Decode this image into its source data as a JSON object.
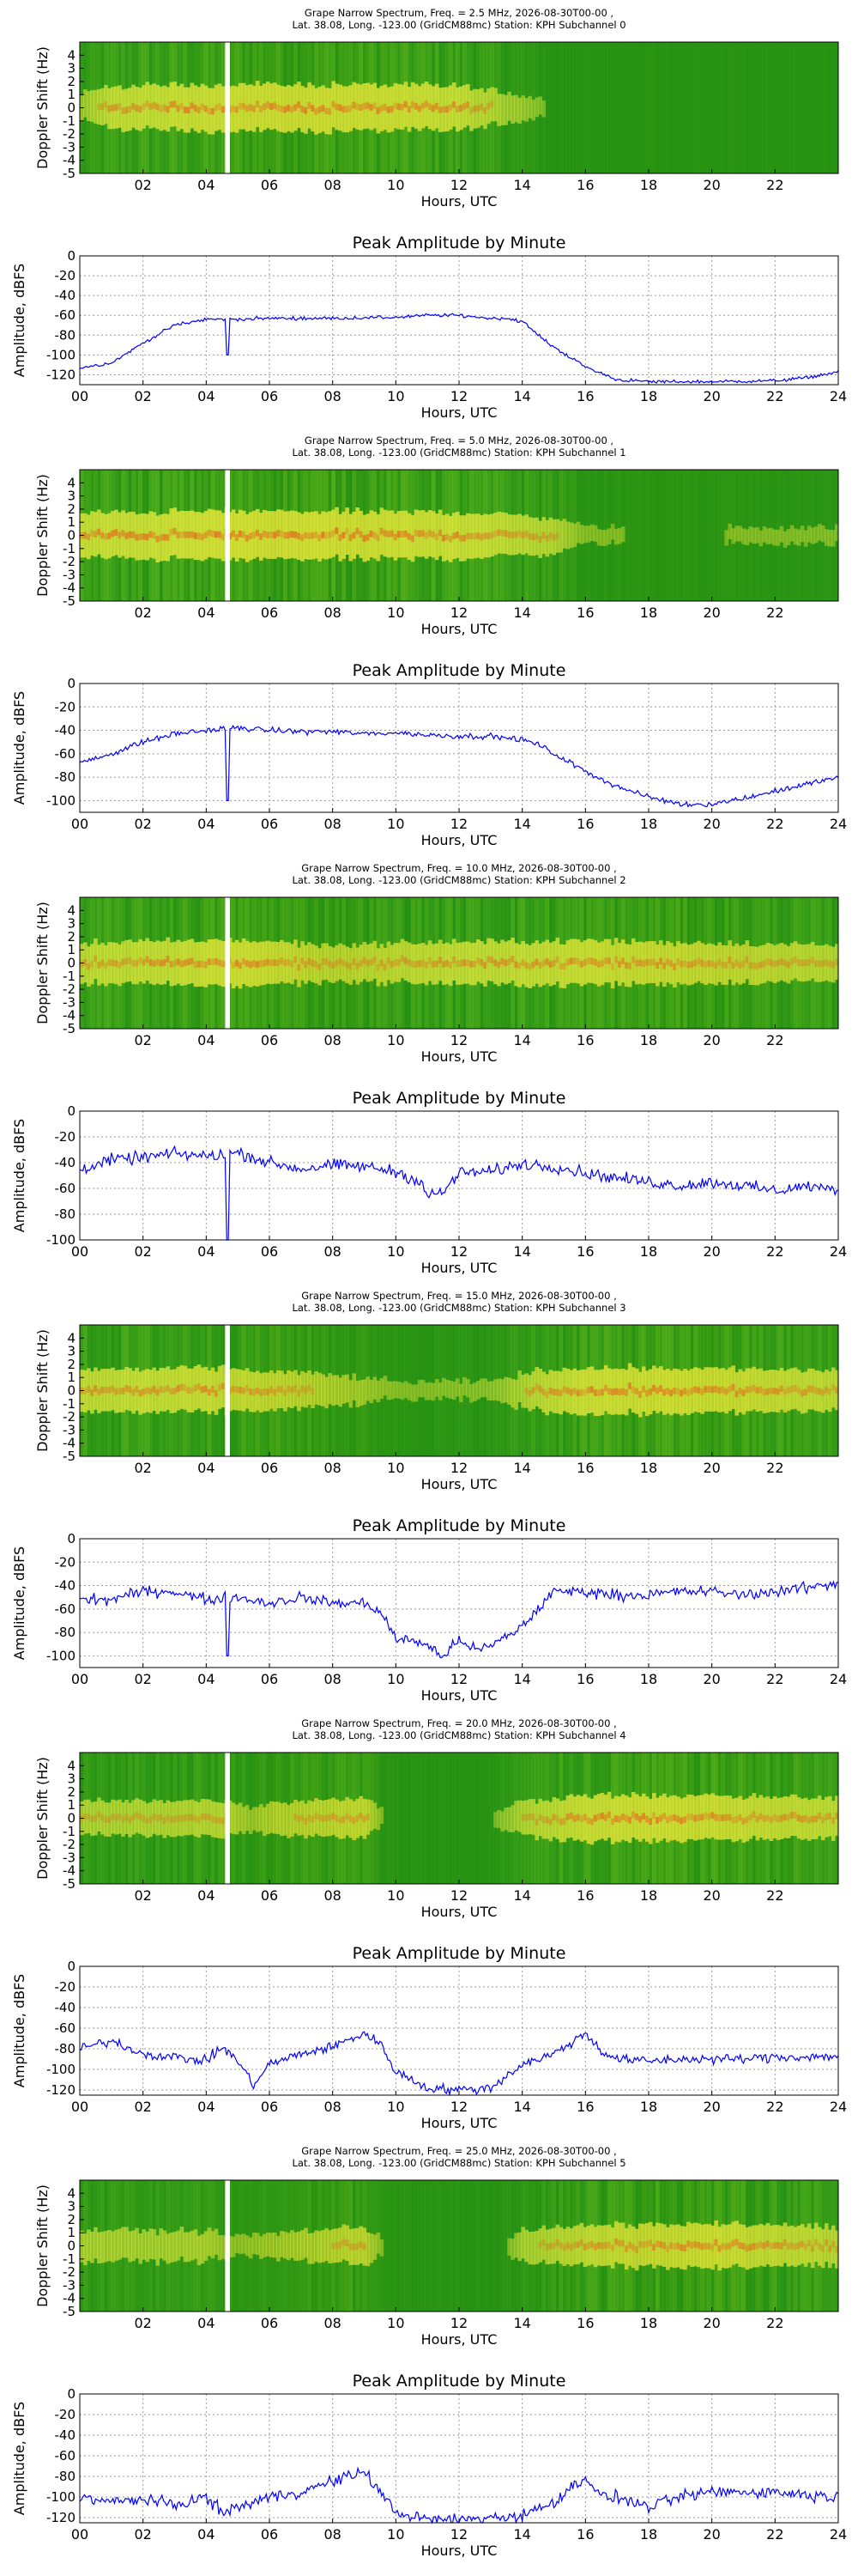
{
  "figure": {
    "spectro_xlabel": "Hours, UTC",
    "spectro_ylabel": "Doppler Shift (Hz)",
    "amp_title": "Peak Amplitude by Minute",
    "amp_xlabel": "Hours, UTC",
    "amp_ylabel": "Amplitude, dBFS"
  },
  "colors": {
    "spectro_background": "#1c8c12",
    "spectro_noise": "#6fbf1e",
    "spectro_signal": "#e8e83a",
    "spectro_peak": "#e8561a",
    "amp_line": "#0000ff",
    "grid": "#9a9a9a",
    "gap_marker": "#ffffff"
  },
  "chart_data": [
    {
      "type": "heatmap",
      "title": "Grape Narrow Spectrum, Freq. = 2.5 MHz, 2026-08-30T00-00 ,",
      "subtitle": "Lat.  38.08, Long. -123.00 (GridCM88mc) Station: KPH Subchannel 0",
      "xlabel": "Hours, UTC",
      "ylabel": "Doppler Shift (Hz)",
      "xlim": [
        0,
        24
      ],
      "ylim": [
        -5,
        5
      ],
      "x_ticks": [
        "02",
        "04",
        "06",
        "08",
        "10",
        "12",
        "14",
        "16",
        "18",
        "20",
        "22"
      ],
      "y_ticks": [
        "4",
        "3",
        "2",
        "1",
        "0",
        "-1",
        "-2",
        "-3",
        "-4",
        "-5"
      ],
      "gap_hours": [
        4.6,
        4.75
      ],
      "signal_activity": [
        [
          0,
          0.35
        ],
        [
          1,
          0.75
        ],
        [
          4,
          0.85
        ],
        [
          8,
          0.85
        ],
        [
          12,
          0.8
        ],
        [
          14,
          0.35
        ],
        [
          15,
          0.05
        ],
        [
          24,
          0.05
        ]
      ]
    },
    {
      "type": "line",
      "title": "Peak Amplitude by Minute",
      "xlabel": "Hours, UTC",
      "ylabel": "Amplitude, dBFS",
      "xlim": [
        0,
        24
      ],
      "ylim": [
        -130,
        0
      ],
      "x_ticks": [
        "00",
        "02",
        "04",
        "06",
        "08",
        "10",
        "12",
        "14",
        "16",
        "18",
        "20",
        "22",
        "24"
      ],
      "y_ticks": [
        "0",
        "-20",
        "-40",
        "-60",
        "-80",
        "-100",
        "-120"
      ],
      "noise_db": 1.5,
      "dips": [
        [
          4.65,
          4.72,
          -100
        ]
      ],
      "series": [
        {
          "x": [
            0,
            1,
            2,
            3,
            4,
            4.6,
            5,
            6,
            8,
            10,
            11,
            12,
            13,
            13.5,
            14,
            14.5,
            15,
            15.5,
            16,
            17,
            18,
            20,
            22,
            23,
            24
          ],
          "values": [
            -113,
            -108,
            -88,
            -70,
            -64,
            -64,
            -64,
            -63,
            -63,
            -62,
            -60,
            -60,
            -63,
            -63,
            -66,
            -80,
            -92,
            -102,
            -112,
            -125,
            -127,
            -127,
            -126,
            -123,
            -117
          ]
        }
      ]
    },
    {
      "type": "heatmap",
      "title": "Grape Narrow Spectrum, Freq. = 5.0 MHz, 2026-08-30T00-00 ,",
      "subtitle": "Lat.  38.08, Long. -123.00 (GridCM88mc) Station: KPH Subchannel 1",
      "xlabel": "Hours, UTC",
      "ylabel": "Doppler Shift (Hz)",
      "xlim": [
        0,
        24
      ],
      "ylim": [
        -5,
        5
      ],
      "x_ticks": [
        "02",
        "04",
        "06",
        "08",
        "10",
        "12",
        "14",
        "16",
        "18",
        "20",
        "22"
      ],
      "y_ticks": [
        "4",
        "3",
        "2",
        "1",
        "0",
        "-1",
        "-2",
        "-3",
        "-4",
        "-5"
      ],
      "gap_hours": [
        4.6,
        4.75
      ],
      "signal_activity": [
        [
          0,
          0.8
        ],
        [
          4,
          0.9
        ],
        [
          12,
          0.85
        ],
        [
          15,
          0.6
        ],
        [
          16,
          0.15
        ],
        [
          18,
          0.1
        ],
        [
          24,
          0.15
        ]
      ]
    },
    {
      "type": "line",
      "title": "Peak Amplitude by Minute",
      "xlabel": "Hours, UTC",
      "ylabel": "Amplitude, dBFS",
      "xlim": [
        0,
        24
      ],
      "ylim": [
        -110,
        0
      ],
      "x_ticks": [
        "00",
        "02",
        "04",
        "06",
        "08",
        "10",
        "12",
        "14",
        "16",
        "18",
        "20",
        "22",
        "24"
      ],
      "y_ticks": [
        "0",
        "-20",
        "-40",
        "-60",
        "-80",
        "-100"
      ],
      "noise_db": 2,
      "dips": [
        [
          4.65,
          4.72,
          -100
        ]
      ],
      "series": [
        {
          "x": [
            0,
            1,
            2,
            3,
            4,
            5,
            6,
            7,
            8,
            9,
            10,
            11,
            12,
            13,
            14,
            14.5,
            15,
            16,
            17,
            18,
            19,
            20,
            21,
            22,
            23,
            24
          ],
          "values": [
            -68,
            -60,
            -50,
            -43,
            -40,
            -38,
            -40,
            -41,
            -41,
            -43,
            -42,
            -44,
            -45,
            -45,
            -48,
            -52,
            -60,
            -75,
            -88,
            -97,
            -103,
            -103,
            -98,
            -92,
            -86,
            -80
          ]
        }
      ]
    },
    {
      "type": "heatmap",
      "title": "Grape Narrow Spectrum, Freq. = 10.0 MHz, 2026-08-30T00-00 ,",
      "subtitle": "Lat.  38.08, Long. -123.00 (GridCM88mc) Station: KPH Subchannel 2",
      "xlabel": "Hours, UTC",
      "ylabel": "Doppler Shift (Hz)",
      "xlim": [
        0,
        24
      ],
      "ylim": [
        -5,
        5
      ],
      "x_ticks": [
        "02",
        "04",
        "06",
        "08",
        "10",
        "12",
        "14",
        "16",
        "18",
        "20",
        "22"
      ],
      "y_ticks": [
        "4",
        "3",
        "2",
        "1",
        "0",
        "-1",
        "-2",
        "-3",
        "-4",
        "-5"
      ],
      "gap_hours": [
        4.6,
        4.75
      ],
      "signal_activity": [
        [
          0,
          0.7
        ],
        [
          5,
          0.85
        ],
        [
          8,
          0.6
        ],
        [
          12,
          0.75
        ],
        [
          16,
          0.8
        ],
        [
          20,
          0.7
        ],
        [
          24,
          0.6
        ]
      ]
    },
    {
      "type": "line",
      "title": "Peak Amplitude by Minute",
      "xlabel": "Hours, UTC",
      "ylabel": "Amplitude, dBFS",
      "xlim": [
        0,
        24
      ],
      "ylim": [
        -100,
        0
      ],
      "x_ticks": [
        "00",
        "02",
        "04",
        "06",
        "08",
        "10",
        "12",
        "14",
        "16",
        "18",
        "20",
        "22",
        "24"
      ],
      "y_ticks": [
        "0",
        "-20",
        "-40",
        "-60",
        "-80",
        "-100"
      ],
      "noise_db": 4,
      "dips": [
        [
          4.65,
          4.72,
          -100
        ]
      ],
      "series": [
        {
          "x": [
            0,
            1,
            2,
            3,
            4,
            5,
            6,
            7,
            8,
            9,
            10,
            10.8,
            11,
            11.5,
            12,
            13,
            14,
            15,
            16,
            17,
            18,
            19,
            20,
            21,
            22,
            23,
            24
          ],
          "values": [
            -45,
            -38,
            -36,
            -33,
            -35,
            -32,
            -40,
            -45,
            -42,
            -43,
            -47,
            -55,
            -66,
            -63,
            -48,
            -47,
            -41,
            -43,
            -48,
            -52,
            -55,
            -58,
            -55,
            -58,
            -62,
            -58,
            -62
          ]
        }
      ]
    },
    {
      "type": "heatmap",
      "title": "Grape Narrow Spectrum, Freq. = 15.0 MHz, 2026-08-30T00-00 ,",
      "subtitle": "Lat.  38.08, Long. -123.00 (GridCM88mc) Station: KPH Subchannel 3",
      "xlabel": "Hours, UTC",
      "ylabel": "Doppler Shift (Hz)",
      "xlim": [
        0,
        24
      ],
      "ylim": [
        -5,
        5
      ],
      "x_ticks": [
        "02",
        "04",
        "06",
        "08",
        "10",
        "12",
        "14",
        "16",
        "18",
        "20",
        "22"
      ],
      "y_ticks": [
        "4",
        "3",
        "2",
        "1",
        "0",
        "-1",
        "-2",
        "-3",
        "-4",
        "-5"
      ],
      "gap_hours": [
        4.6,
        4.75
      ],
      "signal_activity": [
        [
          0,
          0.75
        ],
        [
          4,
          0.8
        ],
        [
          7,
          0.6
        ],
        [
          9,
          0.35
        ],
        [
          10,
          0.15
        ],
        [
          13,
          0.2
        ],
        [
          14.5,
          0.7
        ],
        [
          16,
          0.85
        ],
        [
          20,
          0.8
        ],
        [
          24,
          0.7
        ]
      ]
    },
    {
      "type": "line",
      "title": "Peak Amplitude by Minute",
      "xlabel": "Hours, UTC",
      "ylabel": "Amplitude, dBFS",
      "xlim": [
        0,
        24
      ],
      "ylim": [
        -110,
        0
      ],
      "x_ticks": [
        "00",
        "02",
        "04",
        "06",
        "08",
        "10",
        "12",
        "14",
        "16",
        "18",
        "20",
        "22",
        "24"
      ],
      "y_ticks": [
        "0",
        "-20",
        "-40",
        "-60",
        "-80",
        "-100"
      ],
      "noise_db": 4,
      "dips": [
        [
          4.65,
          4.72,
          -100
        ]
      ],
      "series": [
        {
          "x": [
            0,
            1,
            2,
            3,
            4,
            5,
            6,
            7,
            8,
            9,
            9.5,
            10,
            11,
            11.5,
            12,
            12.5,
            13,
            14,
            14.5,
            15,
            16,
            17,
            18,
            19,
            20,
            21,
            22,
            23,
            24
          ],
          "values": [
            -52,
            -52,
            -45,
            -45,
            -52,
            -50,
            -55,
            -50,
            -55,
            -55,
            -62,
            -85,
            -90,
            -102,
            -85,
            -95,
            -92,
            -75,
            -60,
            -45,
            -45,
            -48,
            -48,
            -45,
            -45,
            -48,
            -45,
            -42,
            -38
          ]
        }
      ]
    },
    {
      "type": "heatmap",
      "title": "Grape Narrow Spectrum, Freq. = 20.0 MHz, 2026-08-30T00-00 ,",
      "subtitle": "Lat.  38.08, Long. -123.00 (GridCM88mc) Station: KPH Subchannel 4",
      "xlabel": "Hours, UTC",
      "ylabel": "Doppler Shift (Hz)",
      "xlim": [
        0,
        24
      ],
      "ylim": [
        -5,
        5
      ],
      "x_ticks": [
        "02",
        "04",
        "06",
        "08",
        "10",
        "12",
        "14",
        "16",
        "18",
        "20",
        "22"
      ],
      "y_ticks": [
        "4",
        "3",
        "2",
        "1",
        "0",
        "-1",
        "-2",
        "-3",
        "-4",
        "-5"
      ],
      "gap_hours": [
        4.6,
        4.75
      ],
      "signal_activity": [
        [
          0,
          0.55
        ],
        [
          4.5,
          0.6
        ],
        [
          5.5,
          0.3
        ],
        [
          6,
          0.5
        ],
        [
          9,
          0.7
        ],
        [
          9.6,
          0.1
        ],
        [
          13,
          0.05
        ],
        [
          14,
          0.55
        ],
        [
          16,
          0.85
        ],
        [
          20,
          0.8
        ],
        [
          24,
          0.7
        ]
      ]
    },
    {
      "type": "line",
      "title": "Peak Amplitude by Minute",
      "xlabel": "Hours, UTC",
      "ylabel": "Amplitude, dBFS",
      "xlim": [
        0,
        24
      ],
      "ylim": [
        -125,
        0
      ],
      "x_ticks": [
        "00",
        "02",
        "04",
        "06",
        "08",
        "10",
        "12",
        "14",
        "16",
        "18",
        "20",
        "22",
        "24"
      ],
      "y_ticks": [
        "0",
        "-20",
        "-40",
        "-60",
        "-80",
        "-100",
        "-120"
      ],
      "noise_db": 4,
      "series": [
        {
          "x": [
            0,
            1,
            2,
            3,
            4,
            4.5,
            5,
            5.5,
            6,
            7,
            8,
            9,
            9.5,
            10,
            11,
            12,
            13,
            14,
            15,
            16,
            16.5,
            17,
            18,
            19,
            20,
            21,
            22,
            23,
            24
          ],
          "values": [
            -80,
            -72,
            -85,
            -88,
            -92,
            -78,
            -92,
            -115,
            -95,
            -85,
            -78,
            -65,
            -75,
            -102,
            -118,
            -120,
            -118,
            -95,
            -85,
            -65,
            -82,
            -90,
            -92,
            -90,
            -90,
            -90,
            -88,
            -88,
            -87
          ]
        }
      ]
    },
    {
      "type": "heatmap",
      "title": "Grape Narrow Spectrum, Freq. = 25.0 MHz, 2026-08-30T00-00 ,",
      "subtitle": "Lat.  38.08, Long. -123.00 (GridCM88mc) Station: KPH Subchannel 5",
      "xlabel": "Hours, UTC",
      "ylabel": "Doppler Shift (Hz)",
      "xlim": [
        0,
        24
      ],
      "ylim": [
        -5,
        5
      ],
      "x_ticks": [
        "02",
        "04",
        "06",
        "08",
        "10",
        "12",
        "14",
        "16",
        "18",
        "20",
        "22"
      ],
      "y_ticks": [
        "4",
        "3",
        "2",
        "1",
        "0",
        "-1",
        "-2",
        "-3",
        "-4",
        "-5"
      ],
      "gap_hours": [
        4.6,
        4.75
      ],
      "signal_activity": [
        [
          0,
          0.5
        ],
        [
          4,
          0.45
        ],
        [
          5,
          0.2
        ],
        [
          7,
          0.45
        ],
        [
          9,
          0.65
        ],
        [
          9.6,
          0.1
        ],
        [
          13.5,
          0.1
        ],
        [
          14,
          0.5
        ],
        [
          16,
          0.7
        ],
        [
          20,
          0.8
        ],
        [
          24,
          0.65
        ]
      ]
    },
    {
      "type": "line",
      "title": "Peak Amplitude by Minute",
      "xlabel": "Hours, UTC",
      "ylabel": "Amplitude, dBFS",
      "xlim": [
        0,
        24
      ],
      "ylim": [
        -125,
        0
      ],
      "x_ticks": [
        "00",
        "02",
        "04",
        "06",
        "08",
        "10",
        "12",
        "14",
        "16",
        "18",
        "20",
        "22",
        "24"
      ],
      "y_ticks": [
        "0",
        "-20",
        "-40",
        "-60",
        "-80",
        "-100",
        "-120"
      ],
      "noise_db": 5,
      "series": [
        {
          "x": [
            0,
            1,
            2,
            3,
            4,
            4.5,
            5,
            6,
            7,
            8,
            9,
            9.5,
            10,
            11,
            12,
            13,
            14,
            15,
            16,
            16.5,
            17,
            18,
            19,
            20,
            21,
            22,
            23,
            24
          ],
          "values": [
            -100,
            -105,
            -102,
            -108,
            -100,
            -115,
            -110,
            -100,
            -95,
            -85,
            -75,
            -95,
            -115,
            -122,
            -122,
            -120,
            -118,
            -105,
            -80,
            -100,
            -100,
            -110,
            -100,
            -95,
            -95,
            -95,
            -98,
            -100
          ]
        }
      ]
    }
  ]
}
